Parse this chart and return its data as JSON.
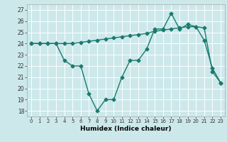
{
  "xlabel": "Humidex (Indice chaleur)",
  "background_color": "#cce8eb",
  "line_color": "#1a7a6e",
  "grid_color": "#ffffff",
  "xlim": [
    -0.5,
    23.5
  ],
  "ylim": [
    17.5,
    27.5
  ],
  "yticks": [
    18,
    19,
    20,
    21,
    22,
    23,
    24,
    25,
    26,
    27
  ],
  "xticks": [
    0,
    1,
    2,
    3,
    4,
    5,
    6,
    7,
    8,
    9,
    10,
    11,
    12,
    13,
    14,
    15,
    16,
    17,
    18,
    19,
    20,
    21,
    22,
    23
  ],
  "series1": [
    24.0,
    24.0,
    24.0,
    24.0,
    22.5,
    22.0,
    22.0,
    19.5,
    18.0,
    19.0,
    19.0,
    21.0,
    22.5,
    22.5,
    23.5,
    25.3,
    25.3,
    26.7,
    25.3,
    25.7,
    25.5,
    24.3,
    21.8,
    20.5
  ],
  "series2": [
    24.0,
    24.0,
    24.0,
    24.0,
    24.0,
    24.0,
    24.1,
    24.2,
    24.3,
    24.4,
    24.5,
    24.6,
    24.7,
    24.8,
    24.9,
    25.1,
    25.2,
    25.3,
    25.4,
    25.5,
    25.5,
    25.4,
    21.5,
    20.5
  ],
  "marker": "D",
  "markersize": 2.5,
  "linewidth": 1.0
}
